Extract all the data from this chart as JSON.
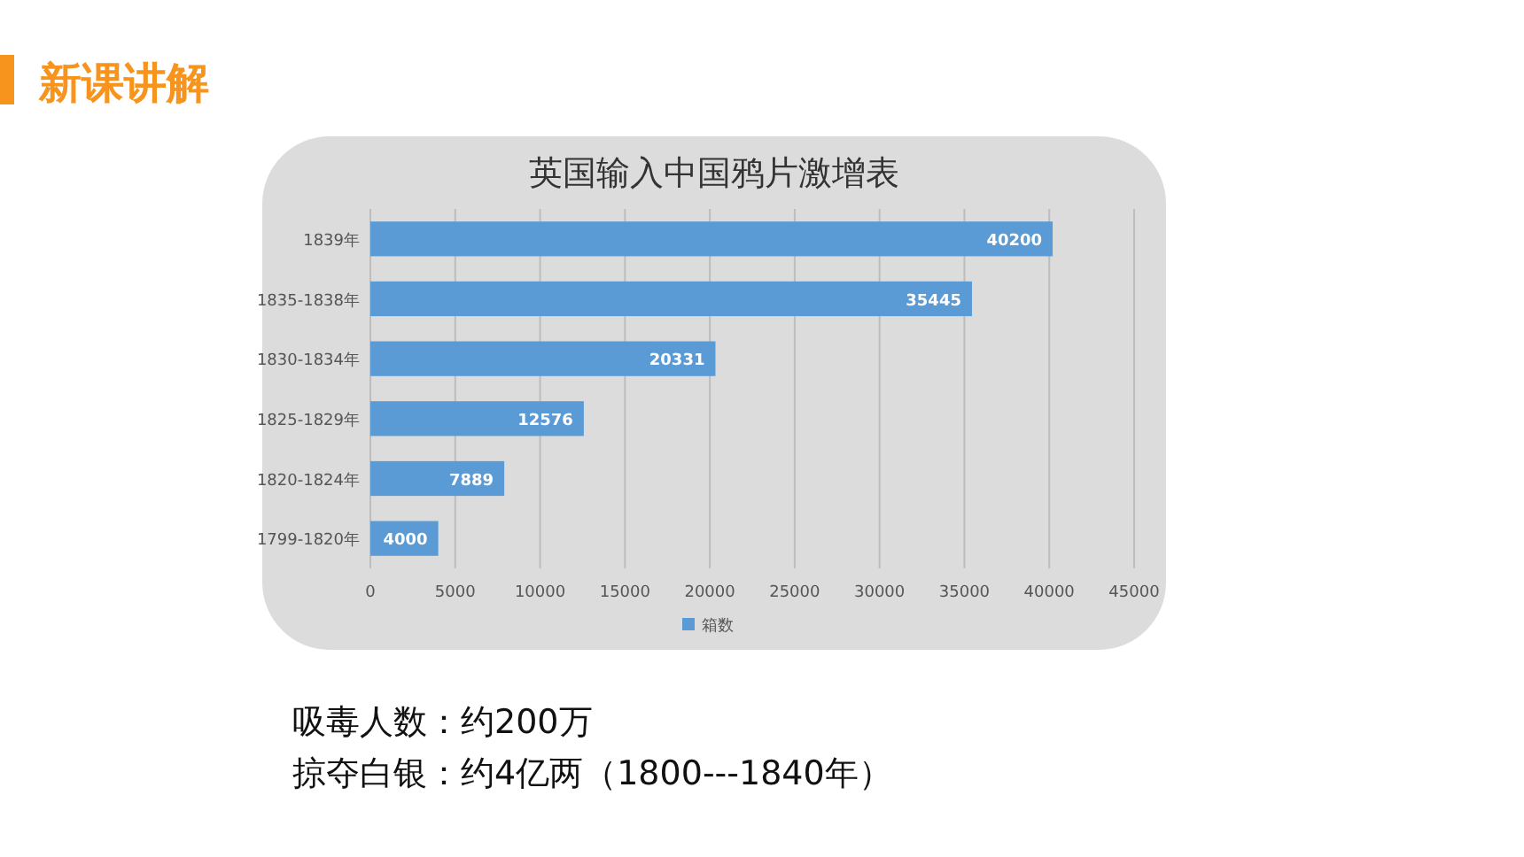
{
  "chart_data": {
    "type": "bar",
    "orientation": "horizontal",
    "title": "英国输入中国鸦片激增表",
    "categories": [
      "1839年",
      "1835-1838年",
      "1830-1834年",
      "1825-1829年",
      "1820-1824年",
      "1799-1820年"
    ],
    "series": [
      {
        "name": "箱数",
        "color": "#5b9bd5",
        "values": [
          40200,
          35445,
          20331,
          12576,
          7889,
          4000
        ]
      }
    ],
    "xlim": [
      0,
      45000
    ],
    "xticks": [
      0,
      5000,
      10000,
      15000,
      20000,
      25000,
      30000,
      35000,
      40000,
      45000
    ],
    "grid": "x",
    "legend": "bottom",
    "data_labels": true,
    "annotations": [
      "新课讲解",
      "吸毒人数：约200万",
      "掠夺白银：约4亿两（1800---1840年）"
    ]
  }
}
